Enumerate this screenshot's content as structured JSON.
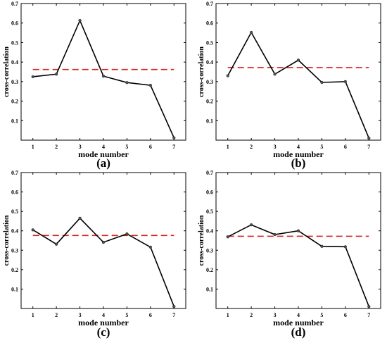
{
  "chart_data": [
    {
      "panel": "(a)",
      "type": "line",
      "xlabel": "mode number",
      "ylabel": "cross-correlation",
      "x": [
        1,
        2,
        3,
        4,
        5,
        6,
        7
      ],
      "xlim": [
        0.5,
        7.5
      ],
      "ylim": [
        0,
        0.7
      ],
      "yticks": [
        0.1,
        0.2,
        0.3,
        0.4,
        0.5,
        0.6,
        0.7
      ],
      "series": [
        {
          "values": [
            0.325,
            0.338,
            0.613,
            0.328,
            0.295,
            0.281,
            0.012
          ],
          "color": "#000000",
          "style": "solid-with-markers"
        }
      ],
      "threshold": {
        "value": 0.362,
        "color": "#d62020",
        "style": "dashed"
      }
    },
    {
      "panel": "(b)",
      "type": "line",
      "xlabel": "mode number",
      "ylabel": "cross-correlation",
      "x": [
        1,
        2,
        3,
        4,
        5,
        6,
        7
      ],
      "xlim": [
        0.5,
        7.5
      ],
      "ylim": [
        0,
        0.7
      ],
      "yticks": [
        0.1,
        0.2,
        0.3,
        0.4,
        0.5,
        0.6,
        0.7
      ],
      "series": [
        {
          "values": [
            0.33,
            0.552,
            0.338,
            0.41,
            0.296,
            0.3,
            0.01
          ],
          "color": "#000000",
          "style": "solid-with-markers"
        }
      ],
      "threshold": {
        "value": 0.372,
        "color": "#d62020",
        "style": "dashed"
      }
    },
    {
      "panel": "(c)",
      "type": "line",
      "xlabel": "mode number",
      "ylabel": "cross-correlation",
      "x": [
        1,
        2,
        3,
        4,
        5,
        6,
        7
      ],
      "xlim": [
        0.5,
        7.5
      ],
      "ylim": [
        0,
        0.7
      ],
      "yticks": [
        0.1,
        0.2,
        0.3,
        0.4,
        0.5,
        0.6,
        0.7
      ],
      "series": [
        {
          "values": [
            0.405,
            0.331,
            0.465,
            0.341,
            0.384,
            0.316,
            0.01
          ],
          "color": "#000000",
          "style": "solid-with-markers"
        }
      ],
      "threshold": {
        "value": 0.376,
        "color": "#d62020",
        "style": "dashed"
      }
    },
    {
      "panel": "(d)",
      "type": "line",
      "xlabel": "mode number",
      "ylabel": "cross-correlation",
      "x": [
        1,
        2,
        3,
        4,
        5,
        6,
        7
      ],
      "xlim": [
        0.5,
        7.5
      ],
      "ylim": [
        0,
        0.7
      ],
      "yticks": [
        0.1,
        0.2,
        0.3,
        0.4,
        0.5,
        0.6,
        0.7
      ],
      "series": [
        {
          "values": [
            0.369,
            0.431,
            0.381,
            0.4,
            0.32,
            0.318,
            0.01
          ],
          "color": "#000000",
          "style": "solid-with-markers"
        }
      ],
      "threshold": {
        "value": 0.372,
        "color": "#d62020",
        "style": "dashed"
      }
    }
  ]
}
